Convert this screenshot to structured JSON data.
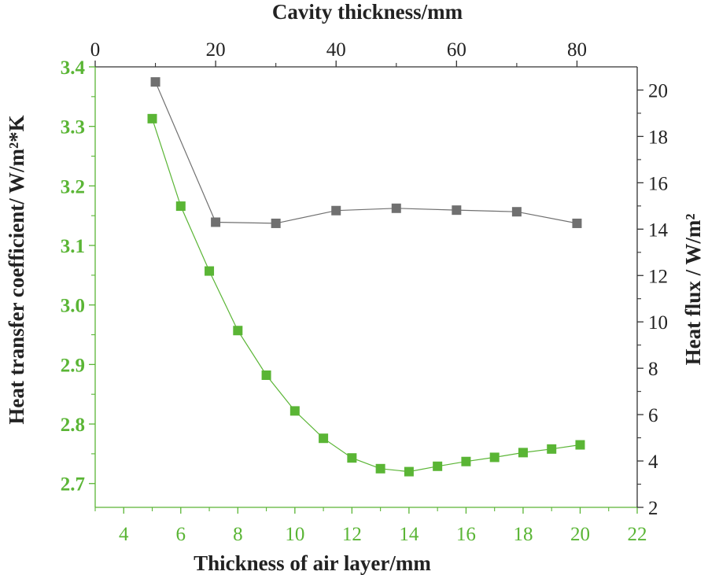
{
  "chart_data": {
    "type": "line",
    "title": "",
    "bottom_axis": {
      "label": "Thickness of air layer/mm",
      "range": [
        3,
        22
      ],
      "ticks": [
        4,
        6,
        8,
        10,
        12,
        14,
        16,
        18,
        20,
        22
      ]
    },
    "top_axis": {
      "label": "Cavity thickness/mm",
      "range": [
        0,
        90
      ],
      "ticks": [
        0,
        20,
        40,
        60,
        80
      ]
    },
    "left_axis": {
      "label": "Heat transfer coefficient/ W/m²*K",
      "range": [
        2.66,
        3.4
      ],
      "ticks": [
        2.7,
        2.8,
        2.9,
        3.0,
        3.1,
        3.2,
        3.3,
        3.4
      ],
      "tick_labels": [
        "2.7",
        "2.8",
        "2.9",
        "3.0",
        "3.1",
        "3.2",
        "3.3",
        "3.4"
      ]
    },
    "right_axis": {
      "label": "Heat flux / W/m²",
      "range": [
        2,
        21
      ],
      "ticks": [
        2,
        4,
        6,
        8,
        10,
        12,
        14,
        16,
        18,
        20
      ]
    },
    "series": [
      {
        "name": "Heat transfer coefficient",
        "color": "#5ab535",
        "x_axis": "bottom",
        "y_axis": "left",
        "x": [
          5,
          6,
          7,
          8,
          9,
          10,
          11,
          12,
          13,
          14,
          15,
          16,
          17,
          18,
          19,
          20
        ],
        "values": [
          3.313,
          3.166,
          3.057,
          2.957,
          2.882,
          2.822,
          2.776,
          2.743,
          2.725,
          2.72,
          2.729,
          2.737,
          2.744,
          2.752,
          2.758,
          2.765
        ]
      },
      {
        "name": "Heat flux",
        "color": "#707070",
        "x_axis": "top",
        "y_axis": "right",
        "x": [
          10,
          20,
          30,
          40,
          50,
          60,
          70,
          80
        ],
        "values": [
          20.35,
          14.3,
          14.25,
          14.8,
          14.9,
          14.82,
          14.75,
          14.25
        ]
      }
    ]
  }
}
